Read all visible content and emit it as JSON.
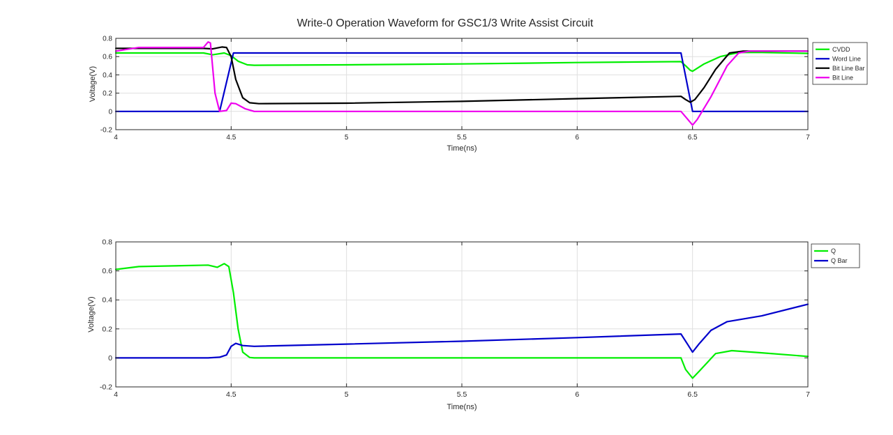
{
  "figure": {
    "title": "Write-0 Operation Waveform for GSC1/3 Write Assist Circuit"
  },
  "colors": {
    "green": "#00ee00",
    "blue": "#0000cc",
    "black": "#000000",
    "magenta": "#ee00ee",
    "axis": "#262626",
    "grid": "#dfdfdf"
  },
  "chart_data": [
    {
      "type": "line",
      "title": "Write-0 Operation Waveform for GSC1/3 Write Assist Circuit",
      "xlabel": "Time(ns)",
      "ylabel": "Voltage(V)",
      "xlim": [
        4,
        7
      ],
      "ylim": [
        -0.2,
        0.8
      ],
      "xticks": [
        4,
        4.5,
        5,
        5.5,
        6,
        6.5,
        7
      ],
      "yticks": [
        -0.2,
        0,
        0.2,
        0.4,
        0.6,
        0.8
      ],
      "grid": true,
      "legend_position": "outside-top-right",
      "series": [
        {
          "name": "CVDD",
          "color": "#00ee00",
          "points": [
            [
              4,
              0.64
            ],
            [
              4.38,
              0.64
            ],
            [
              4.42,
              0.62
            ],
            [
              4.47,
              0.64
            ],
            [
              4.5,
              0.61
            ],
            [
              4.53,
              0.55
            ],
            [
              4.57,
              0.51
            ],
            [
              4.6,
              0.505
            ],
            [
              5,
              0.51
            ],
            [
              5.5,
              0.52
            ],
            [
              6,
              0.535
            ],
            [
              6.45,
              0.545
            ],
            [
              6.47,
              0.5
            ],
            [
              6.49,
              0.45
            ],
            [
              6.5,
              0.44
            ],
            [
              6.55,
              0.52
            ],
            [
              6.62,
              0.6
            ],
            [
              6.7,
              0.645
            ],
            [
              6.8,
              0.645
            ],
            [
              7,
              0.635
            ]
          ]
        },
        {
          "name": "Word Line",
          "color": "#0000cc",
          "points": [
            [
              4,
              0
            ],
            [
              4.45,
              0
            ],
            [
              4.51,
              0.64
            ],
            [
              6.45,
              0.64
            ],
            [
              6.5,
              0
            ],
            [
              7,
              0
            ]
          ]
        },
        {
          "name": "Bit Line Bar",
          "color": "#000000",
          "points": [
            [
              4,
              0.69
            ],
            [
              4.38,
              0.69
            ],
            [
              4.42,
              0.685
            ],
            [
              4.46,
              0.705
            ],
            [
              4.48,
              0.7
            ],
            [
              4.5,
              0.6
            ],
            [
              4.52,
              0.35
            ],
            [
              4.55,
              0.15
            ],
            [
              4.58,
              0.095
            ],
            [
              4.62,
              0.085
            ],
            [
              5,
              0.09
            ],
            [
              5.5,
              0.11
            ],
            [
              6,
              0.14
            ],
            [
              6.45,
              0.165
            ],
            [
              6.47,
              0.13
            ],
            [
              6.49,
              0.1
            ],
            [
              6.51,
              0.13
            ],
            [
              6.55,
              0.26
            ],
            [
              6.6,
              0.46
            ],
            [
              6.66,
              0.64
            ],
            [
              6.72,
              0.66
            ],
            [
              7,
              0.66
            ]
          ]
        },
        {
          "name": "Bit Line",
          "color": "#ee00ee",
          "points": [
            [
              4,
              0.66
            ],
            [
              4.1,
              0.7
            ],
            [
              4.38,
              0.7
            ],
            [
              4.4,
              0.76
            ],
            [
              4.41,
              0.75
            ],
            [
              4.43,
              0.2
            ],
            [
              4.45,
              0.0
            ],
            [
              4.48,
              0.01
            ],
            [
              4.5,
              0.09
            ],
            [
              4.52,
              0.085
            ],
            [
              4.56,
              0.03
            ],
            [
              4.6,
              0
            ],
            [
              6.45,
              0
            ],
            [
              6.48,
              -0.09
            ],
            [
              6.5,
              -0.15
            ],
            [
              6.52,
              -0.09
            ],
            [
              6.58,
              0.16
            ],
            [
              6.65,
              0.5
            ],
            [
              6.7,
              0.64
            ],
            [
              6.75,
              0.66
            ],
            [
              7,
              0.66
            ]
          ]
        }
      ]
    },
    {
      "type": "line",
      "title": "",
      "xlabel": "Time(ns)",
      "ylabel": "Voltage(V)",
      "xlim": [
        4,
        7
      ],
      "ylim": [
        -0.2,
        0.8
      ],
      "xticks": [
        4,
        4.5,
        5,
        5.5,
        6,
        6.5,
        7
      ],
      "yticks": [
        -0.2,
        0,
        0.2,
        0.4,
        0.6,
        0.8
      ],
      "grid": true,
      "legend_position": "outside-top-right",
      "series": [
        {
          "name": "Q",
          "color": "#00ee00",
          "points": [
            [
              4,
              0.61
            ],
            [
              4.1,
              0.63
            ],
            [
              4.4,
              0.64
            ],
            [
              4.44,
              0.625
            ],
            [
              4.47,
              0.65
            ],
            [
              4.49,
              0.63
            ],
            [
              4.51,
              0.45
            ],
            [
              4.53,
              0.2
            ],
            [
              4.55,
              0.04
            ],
            [
              4.58,
              0.003
            ],
            [
              4.6,
              0
            ],
            [
              6.45,
              0
            ],
            [
              6.47,
              -0.08
            ],
            [
              6.5,
              -0.14
            ],
            [
              6.53,
              -0.09
            ],
            [
              6.6,
              0.03
            ],
            [
              6.67,
              0.05
            ],
            [
              6.8,
              0.035
            ],
            [
              7,
              0.01
            ]
          ]
        },
        {
          "name": "Q Bar",
          "color": "#0000cc",
          "points": [
            [
              4,
              0
            ],
            [
              4.4,
              0
            ],
            [
              4.45,
              0.005
            ],
            [
              4.48,
              0.02
            ],
            [
              4.5,
              0.08
            ],
            [
              4.52,
              0.1
            ],
            [
              4.55,
              0.085
            ],
            [
              4.6,
              0.08
            ],
            [
              5,
              0.095
            ],
            [
              5.5,
              0.115
            ],
            [
              6,
              0.14
            ],
            [
              6.45,
              0.165
            ],
            [
              6.48,
              0.09
            ],
            [
              6.5,
              0.04
            ],
            [
              6.53,
              0.1
            ],
            [
              6.58,
              0.19
            ],
            [
              6.65,
              0.25
            ],
            [
              6.8,
              0.29
            ],
            [
              7,
              0.37
            ]
          ]
        }
      ]
    }
  ]
}
